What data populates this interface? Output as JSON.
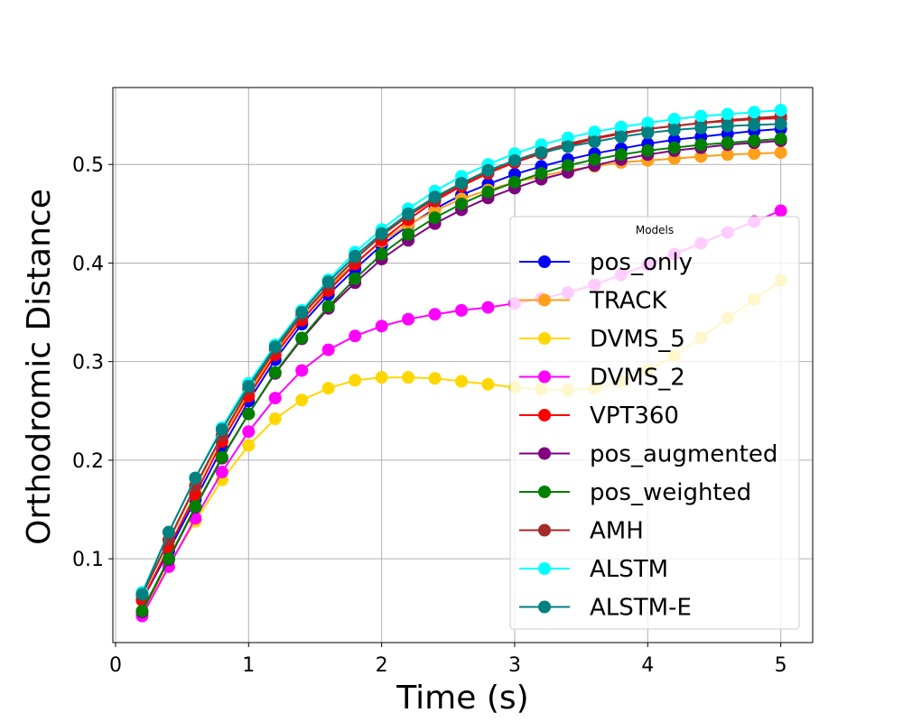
{
  "chart_data": {
    "type": "line",
    "title": "",
    "xlabel": "Time (s)",
    "ylabel": "Orthodromic Distance",
    "xlim": [
      -0.02,
      5.24
    ],
    "ylim": [
      0.015,
      0.578
    ],
    "xticks": [
      0,
      1,
      2,
      3,
      4,
      5
    ],
    "yticks": [
      0.1,
      0.2,
      0.3,
      0.4,
      0.5
    ],
    "grid": true,
    "legend_title": "Models",
    "legend_position": "center-right",
    "x": [
      0.2,
      0.4,
      0.6,
      0.8,
      1.0,
      1.2,
      1.4,
      1.6,
      1.8,
      2.0,
      2.2,
      2.4,
      2.6,
      2.8,
      3.0,
      3.2,
      3.4,
      3.6,
      3.8,
      4.0,
      4.2,
      4.4,
      4.6,
      4.8,
      5.0
    ],
    "series": [
      {
        "name": "pos_only",
        "color": "#0000ff",
        "values": [
          0.058,
          0.108,
          0.16,
          0.212,
          0.26,
          0.302,
          0.338,
          0.368,
          0.394,
          0.418,
          0.438,
          0.455,
          0.469,
          0.48,
          0.49,
          0.498,
          0.505,
          0.511,
          0.516,
          0.521,
          0.525,
          0.528,
          0.531,
          0.534,
          0.536
        ]
      },
      {
        "name": "TRACK",
        "color": "#ff9f1a",
        "values": [
          0.063,
          0.118,
          0.172,
          0.224,
          0.268,
          0.31,
          0.346,
          0.375,
          0.4,
          0.422,
          0.439,
          0.453,
          0.465,
          0.474,
          0.482,
          0.488,
          0.494,
          0.498,
          0.502,
          0.504,
          0.506,
          0.508,
          0.51,
          0.511,
          0.512
        ]
      },
      {
        "name": "DVMS_5",
        "color": "#ffd700",
        "values": [
          0.045,
          0.093,
          0.138,
          0.18,
          0.215,
          0.242,
          0.261,
          0.273,
          0.281,
          0.284,
          0.284,
          0.283,
          0.28,
          0.277,
          0.274,
          0.272,
          0.271,
          0.273,
          0.28,
          0.291,
          0.306,
          0.324,
          0.344,
          0.363,
          0.382
        ]
      },
      {
        "name": "DVMS_2",
        "color": "#ff00ff",
        "values": [
          0.042,
          0.092,
          0.141,
          0.188,
          0.229,
          0.263,
          0.291,
          0.312,
          0.326,
          0.336,
          0.343,
          0.348,
          0.352,
          0.355,
          0.359,
          0.364,
          0.37,
          0.378,
          0.388,
          0.398,
          0.409,
          0.42,
          0.431,
          0.442,
          0.453
        ]
      },
      {
        "name": "VPT360",
        "color": "#ff0000",
        "values": [
          0.058,
          0.111,
          0.165,
          0.219,
          0.265,
          0.307,
          0.342,
          0.372,
          0.399,
          0.423,
          0.444,
          0.463,
          0.478,
          0.491,
          0.502,
          0.511,
          0.519,
          0.526,
          0.531,
          0.536,
          0.539,
          0.542,
          0.544,
          0.546,
          0.547
        ]
      },
      {
        "name": "pos_augmented",
        "color": "#800080",
        "values": [
          0.046,
          0.099,
          0.152,
          0.202,
          0.247,
          0.288,
          0.323,
          0.354,
          0.38,
          0.404,
          0.423,
          0.44,
          0.454,
          0.466,
          0.476,
          0.485,
          0.492,
          0.499,
          0.505,
          0.51,
          0.514,
          0.517,
          0.52,
          0.522,
          0.524
        ]
      },
      {
        "name": "pos_weighted",
        "color": "#008000",
        "values": [
          0.047,
          0.1,
          0.153,
          0.203,
          0.247,
          0.289,
          0.324,
          0.356,
          0.384,
          0.409,
          0.429,
          0.446,
          0.46,
          0.472,
          0.482,
          0.491,
          0.499,
          0.505,
          0.51,
          0.514,
          0.517,
          0.52,
          0.522,
          0.524,
          0.526
        ]
      },
      {
        "name": "AMH",
        "color": "#a52a2a",
        "values": [
          0.063,
          0.119,
          0.174,
          0.225,
          0.272,
          0.312,
          0.347,
          0.377,
          0.404,
          0.428,
          0.448,
          0.465,
          0.48,
          0.493,
          0.504,
          0.513,
          0.521,
          0.527,
          0.532,
          0.536,
          0.539,
          0.542,
          0.545,
          0.547,
          0.549
        ]
      },
      {
        "name": "ALSTM",
        "color": "#00ffff",
        "values": [
          0.066,
          0.127,
          0.182,
          0.233,
          0.278,
          0.317,
          0.352,
          0.383,
          0.411,
          0.434,
          0.455,
          0.473,
          0.488,
          0.5,
          0.511,
          0.52,
          0.527,
          0.533,
          0.538,
          0.542,
          0.546,
          0.549,
          0.551,
          0.553,
          0.555
        ]
      },
      {
        "name": "ALSTM-E",
        "color": "#008080",
        "values": [
          0.064,
          0.127,
          0.182,
          0.231,
          0.275,
          0.315,
          0.35,
          0.381,
          0.407,
          0.43,
          0.45,
          0.467,
          0.481,
          0.494,
          0.504,
          0.512,
          0.518,
          0.523,
          0.528,
          0.532,
          0.535,
          0.537,
          0.539,
          0.54,
          0.541
        ]
      }
    ]
  }
}
